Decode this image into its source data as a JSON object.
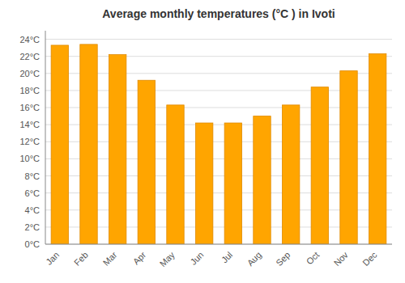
{
  "chart_data": {
    "type": "bar",
    "title": "Average monthly temperatures (°C ) in Ivoti",
    "categories": [
      "Jan",
      "Feb",
      "Mar",
      "Apr",
      "May",
      "Jun",
      "Jul",
      "Aug",
      "Sep",
      "Oct",
      "Nov",
      "Dec"
    ],
    "values": [
      23.3,
      23.4,
      22.2,
      19.2,
      16.3,
      14.2,
      14.2,
      15.0,
      16.3,
      18.4,
      20.3,
      22.3
    ],
    "color": "#FFA500",
    "ylim": [
      0,
      25
    ],
    "yticks": [
      {
        "value": 0,
        "label": "0°C"
      },
      {
        "value": 2,
        "label": "2°C"
      },
      {
        "value": 4,
        "label": "4°C"
      },
      {
        "value": 6,
        "label": "6°C"
      },
      {
        "value": 8,
        "label": "8°C"
      },
      {
        "value": 10,
        "label": "10°C"
      },
      {
        "value": 12,
        "label": "12°C"
      },
      {
        "value": 14,
        "label": "14°C"
      },
      {
        "value": 16,
        "label": "16°C"
      },
      {
        "value": 18,
        "label": "18°C"
      },
      {
        "value": 20,
        "label": "20°C"
      },
      {
        "value": 22,
        "label": "22°C"
      },
      {
        "value": 24,
        "label": "24°C"
      }
    ],
    "grid": true
  }
}
